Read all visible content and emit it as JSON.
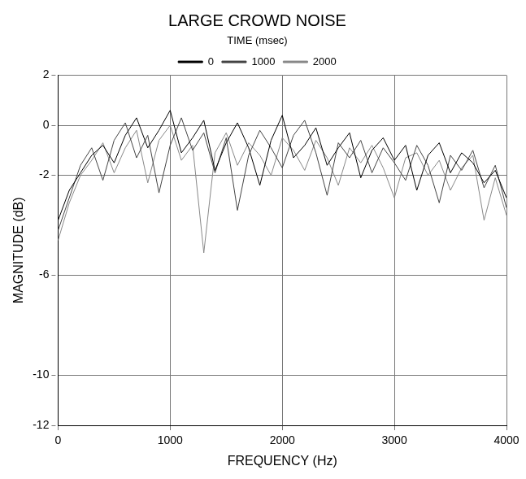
{
  "chart_data": {
    "type": "line",
    "title": "LARGE CROWD NOISE",
    "x_label": "FREQUENCY (Hz)",
    "y_label": "MAGNITUDE (dB)",
    "time_label": "TIME (msec)",
    "x": [
      0,
      100,
      200,
      300,
      400,
      500,
      600,
      700,
      800,
      900,
      1000,
      1100,
      1200,
      1300,
      1400,
      1500,
      1600,
      1700,
      1800,
      1900,
      2000,
      2100,
      2200,
      2300,
      2400,
      2500,
      2600,
      2700,
      2800,
      2900,
      3000,
      3100,
      3200,
      3300,
      3400,
      3500,
      3600,
      3700,
      3800,
      3900,
      4000
    ],
    "series": [
      {
        "name": "0",
        "color": "#000000",
        "values": [
          -3.8,
          -2.6,
          -1.9,
          -1.2,
          -0.8,
          -1.5,
          -0.4,
          0.3,
          -0.9,
          -0.2,
          0.6,
          -1.1,
          -0.5,
          0.2,
          -1.8,
          -0.7,
          0.1,
          -0.9,
          -2.4,
          -0.6,
          0.4,
          -1.3,
          -0.8,
          -0.1,
          -1.6,
          -0.9,
          -0.3,
          -2.1,
          -1.0,
          -0.5,
          -1.4,
          -0.8,
          -2.6,
          -1.2,
          -0.7,
          -1.9,
          -1.1,
          -1.5,
          -2.3,
          -1.8,
          -2.9
        ]
      },
      {
        "name": "1000",
        "color": "#444444",
        "values": [
          -4.2,
          -2.9,
          -1.6,
          -0.9,
          -2.2,
          -0.6,
          0.1,
          -1.3,
          -0.4,
          -2.7,
          -0.8,
          0.3,
          -1.0,
          -0.3,
          -1.9,
          -0.5,
          -3.4,
          -1.2,
          -0.2,
          -0.9,
          -1.7,
          -0.4,
          0.2,
          -1.1,
          -2.8,
          -0.7,
          -1.3,
          -0.6,
          -1.9,
          -0.9,
          -1.5,
          -2.2,
          -0.8,
          -1.6,
          -3.1,
          -1.2,
          -1.8,
          -1.0,
          -2.5,
          -1.6,
          -3.3
        ]
      },
      {
        "name": "2000",
        "color": "#888888",
        "values": [
          -4.6,
          -3.1,
          -2.0,
          -1.4,
          -0.7,
          -1.9,
          -0.9,
          -0.2,
          -2.3,
          -0.6,
          0.0,
          -1.4,
          -0.8,
          -5.1,
          -1.1,
          -0.3,
          -1.6,
          -0.7,
          -1.2,
          -2.0,
          -0.5,
          -1.0,
          -1.8,
          -0.6,
          -1.3,
          -2.4,
          -0.9,
          -1.5,
          -0.8,
          -1.7,
          -2.9,
          -1.3,
          -1.1,
          -2.0,
          -1.4,
          -2.6,
          -1.7,
          -1.2,
          -3.8,
          -2.1,
          -3.6
        ]
      }
    ],
    "xlim": [
      0,
      4000
    ],
    "xticks": [
      0,
      1000,
      2000,
      3000,
      4000
    ],
    "ylim": [
      -12,
      2
    ],
    "yticks": [
      -12,
      -10,
      -6,
      -2,
      0,
      2
    ],
    "grid": true,
    "legend": "top"
  }
}
